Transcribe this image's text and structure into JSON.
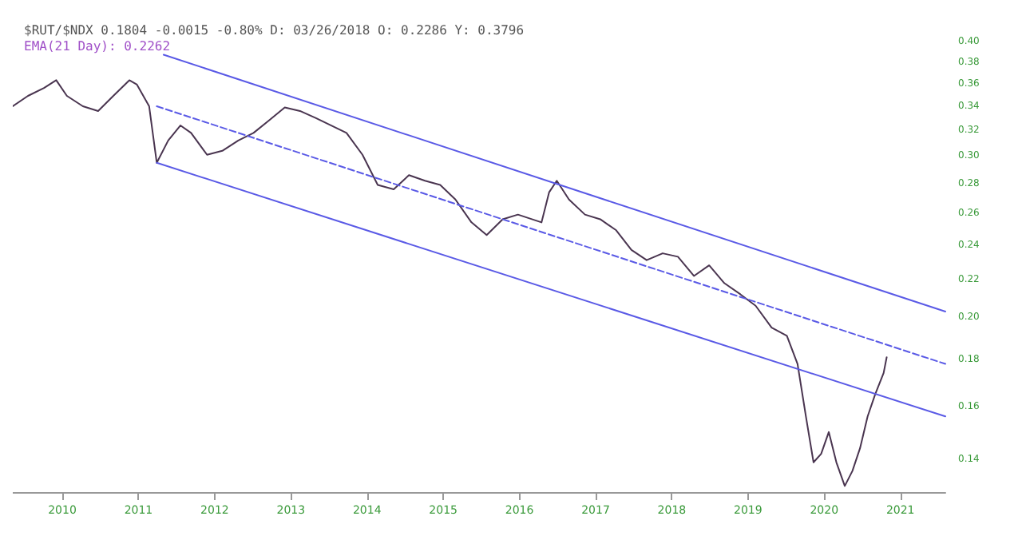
{
  "chart_data": {
    "type": "line",
    "title": "$RUT/$NDX 0.1804 -0.0015 -0.80% D: 03/26/2018 O: 0.2286 Y: 0.3796",
    "subtitle": "EMA(21 Day): 0.2262",
    "log": "y",
    "grid": false,
    "marker": "none",
    "xlim": [
      2009.35,
      2021.59
    ],
    "xticks": [
      2010,
      2011,
      2012,
      2013,
      2014,
      2015,
      2016,
      2017,
      2018,
      2019,
      2020,
      2021
    ],
    "ylim": [
      0.129,
      0.43
    ],
    "yticks": [
      {
        "value": 0.4,
        "label": "0.40"
      },
      {
        "value": 0.38,
        "label": "0.38"
      },
      {
        "value": 0.36,
        "label": "0.36"
      },
      {
        "value": 0.34,
        "label": "0.34"
      },
      {
        "value": 0.32,
        "label": "0.32"
      },
      {
        "value": 0.3,
        "label": "0.30"
      },
      {
        "value": 0.28,
        "label": "0.28"
      },
      {
        "value": 0.26,
        "label": "0.26"
      },
      {
        "value": 0.24,
        "label": "0.24"
      },
      {
        "value": 0.22,
        "label": "0.22"
      },
      {
        "value": 0.2,
        "label": "0.20"
      },
      {
        "value": 0.18,
        "label": "0.18"
      },
      {
        "value": 0.16,
        "label": "0.16"
      },
      {
        "value": 0.14,
        "label": "0.14"
      }
    ],
    "series": [
      {
        "color": "#4a3550",
        "line_style": "solid",
        "x": [
          2009.35,
          2009.55,
          2009.76,
          2009.92,
          2010.06,
          2010.27,
          2010.47,
          2010.67,
          2010.88,
          2010.98,
          2011.14,
          2011.24,
          2011.39,
          2011.55,
          2011.69,
          2011.9,
          2012.1,
          2012.31,
          2012.51,
          2012.71,
          2012.92,
          2013.12,
          2013.33,
          2013.53,
          2013.73,
          2013.94,
          2014.14,
          2014.35,
          2014.55,
          2014.76,
          2014.96,
          2015.16,
          2015.37,
          2015.57,
          2015.78,
          2015.98,
          2016.29,
          2016.39,
          2016.49,
          2016.65,
          2016.86,
          2017.06,
          2017.27,
          2017.47,
          2017.67,
          2017.88,
          2018.08,
          2018.29,
          2018.49,
          2018.69,
          2018.9,
          2019.1,
          2019.31,
          2019.51,
          2019.65,
          2019.76,
          2019.86,
          2019.96,
          2020.06,
          2020.16,
          2020.27,
          2020.37,
          2020.47,
          2020.57,
          2020.67,
          2020.78,
          2020.82
        ],
        "values": [
          0.34,
          0.349,
          0.356,
          0.363,
          0.349,
          0.34,
          0.336,
          0.349,
          0.363,
          0.359,
          0.34,
          0.295,
          0.312,
          0.324,
          0.318,
          0.301,
          0.304,
          0.312,
          0.318,
          0.328,
          0.339,
          0.336,
          0.33,
          0.324,
          0.318,
          0.301,
          0.279,
          0.276,
          0.286,
          0.282,
          0.279,
          0.269,
          0.254,
          0.246,
          0.256,
          0.259,
          0.254,
          0.274,
          0.282,
          0.269,
          0.259,
          0.256,
          0.249,
          0.237,
          0.231,
          0.235,
          0.233,
          0.222,
          0.228,
          0.218,
          0.212,
          0.206,
          0.195,
          0.191,
          0.178,
          0.156,
          0.139,
          0.142,
          0.15,
          0.139,
          0.131,
          0.136,
          0.144,
          0.156,
          0.165,
          0.174,
          0.181
        ]
      },
      {
        "color": "#5a5ae6",
        "line_style": "solid",
        "x": [
          2011.33,
          2021.59
        ],
        "values": [
          0.387,
          0.203
        ]
      },
      {
        "color": "#5a5ae6",
        "line_style": "dashed",
        "x": [
          2011.24,
          2021.59
        ],
        "values": [
          0.34,
          0.178
        ]
      },
      {
        "color": "#5a5ae6",
        "line_style": "solid",
        "x": [
          2011.24,
          2021.59
        ],
        "values": [
          0.295,
          0.156
        ]
      }
    ]
  }
}
